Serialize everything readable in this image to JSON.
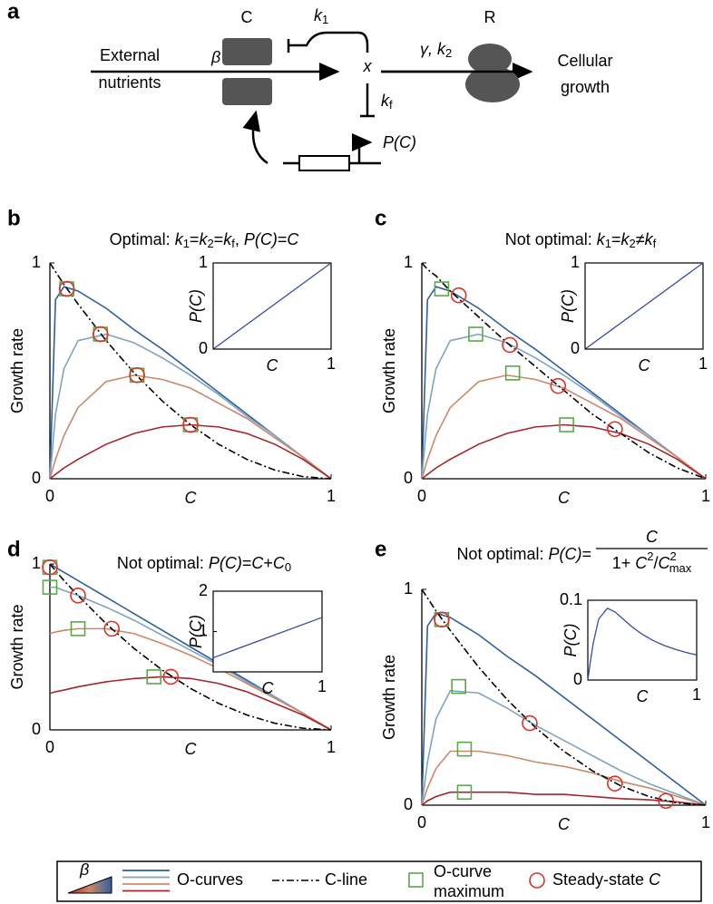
{
  "diagram": {
    "panel": "a",
    "channel_label": "C",
    "ribosome_label": "R",
    "input": [
      "External",
      "nutrients"
    ],
    "output": [
      "Cellular",
      "growth"
    ],
    "beta": "β",
    "intermediate": "x",
    "k1": [
      "k",
      "1"
    ],
    "kf": [
      "k",
      "f"
    ],
    "gamma_k2": [
      "γ, k",
      "2"
    ],
    "promoter": "P(C)"
  },
  "chart_data": [
    {
      "type": "line",
      "panel": "b",
      "title": [
        "Optimal: ",
        "k",
        "1",
        "=",
        "k",
        "2",
        "=",
        "k",
        "f",
        ", ",
        "P(C)",
        "=",
        "C"
      ],
      "xlabel": "C",
      "ylabel": "Growth rate",
      "xlim": [
        0,
        1
      ],
      "ylim": [
        0,
        1
      ],
      "xticks": [
        0,
        1
      ],
      "yticks": [
        0,
        1
      ],
      "x": [
        0,
        0.02,
        0.05,
        0.1,
        0.2,
        0.3,
        0.4,
        0.5,
        0.6,
        0.7,
        0.8,
        0.9,
        1
      ],
      "series": [
        {
          "color": "#2e5f9e",
          "values": [
            0,
            0.83,
            0.89,
            0.87,
            0.79,
            0.69,
            0.6,
            0.5,
            0.4,
            0.3,
            0.2,
            0.1,
            0
          ]
        },
        {
          "color": "#7fa3c0",
          "values": [
            0,
            0.3,
            0.51,
            0.64,
            0.67,
            0.63,
            0.56,
            0.48,
            0.39,
            0.29,
            0.2,
            0.1,
            0
          ]
        },
        {
          "color": "#c9896a",
          "values": [
            0,
            0.09,
            0.2,
            0.33,
            0.45,
            0.48,
            0.46,
            0.42,
            0.35,
            0.28,
            0.19,
            0.1,
            0
          ]
        },
        {
          "color": "#a3262a",
          "values": [
            0,
            0.02,
            0.05,
            0.09,
            0.16,
            0.21,
            0.24,
            0.25,
            0.24,
            0.21,
            0.16,
            0.09,
            0
          ]
        },
        {
          "color": "#000000",
          "dash": "dash-dot",
          "values": [
            1,
            0.96,
            0.9,
            0.81,
            0.64,
            0.49,
            0.36,
            0.25,
            0.16,
            0.09,
            0.04,
            0.01,
            0
          ]
        }
      ],
      "markers": [
        {
          "shape": "square",
          "color": "#5aa84a",
          "x": [
            0.06,
            0.18,
            0.31,
            0.5
          ],
          "y": [
            0.88,
            0.67,
            0.48,
            0.25
          ]
        },
        {
          "shape": "circle",
          "color": "#d9342b",
          "x": [
            0.06,
            0.18,
            0.31,
            0.5
          ],
          "y": [
            0.88,
            0.67,
            0.48,
            0.25
          ]
        }
      ],
      "inset": {
        "xlabel": "C",
        "ylabel": "P(C)",
        "xlim": [
          0,
          1
        ],
        "ylim": [
          0,
          1
        ],
        "xticks": [
          1
        ],
        "yticks": [
          0,
          1
        ],
        "x": [
          0,
          1
        ],
        "values": [
          0,
          1
        ],
        "color": "#3b4ba0"
      }
    },
    {
      "type": "line",
      "panel": "c",
      "title": [
        "Not optimal: ",
        "k",
        "1",
        "=",
        "k",
        "2",
        "≠",
        "k",
        "f"
      ],
      "xlabel": "C",
      "ylabel": "Growth rate",
      "xlim": [
        0,
        1
      ],
      "ylim": [
        0,
        1
      ],
      "xticks": [
        0,
        1
      ],
      "yticks": [
        0,
        1
      ],
      "x": [
        0,
        0.02,
        0.05,
        0.1,
        0.2,
        0.3,
        0.4,
        0.5,
        0.6,
        0.7,
        0.8,
        0.9,
        1
      ],
      "series": [
        {
          "color": "#2e5f9e",
          "values": [
            0,
            0.83,
            0.89,
            0.87,
            0.79,
            0.69,
            0.6,
            0.5,
            0.4,
            0.3,
            0.2,
            0.1,
            0
          ]
        },
        {
          "color": "#7fa3c0",
          "values": [
            0,
            0.3,
            0.51,
            0.64,
            0.67,
            0.63,
            0.56,
            0.48,
            0.39,
            0.29,
            0.2,
            0.1,
            0
          ]
        },
        {
          "color": "#c9896a",
          "values": [
            0,
            0.09,
            0.2,
            0.33,
            0.45,
            0.48,
            0.46,
            0.42,
            0.35,
            0.28,
            0.19,
            0.1,
            0
          ]
        },
        {
          "color": "#a3262a",
          "values": [
            0,
            0.02,
            0.05,
            0.09,
            0.16,
            0.21,
            0.24,
            0.25,
            0.24,
            0.21,
            0.16,
            0.09,
            0
          ]
        },
        {
          "color": "#000000",
          "dash": "dash-dot",
          "values": [
            1,
            0.97,
            0.94,
            0.87,
            0.75,
            0.63,
            0.52,
            0.41,
            0.3,
            0.21,
            0.12,
            0.05,
            0
          ]
        }
      ],
      "markers": [
        {
          "shape": "square",
          "color": "#5aa84a",
          "x": [
            0.07,
            0.19,
            0.32,
            0.51
          ],
          "y": [
            0.88,
            0.67,
            0.49,
            0.25
          ]
        },
        {
          "shape": "circle",
          "color": "#d9342b",
          "x": [
            0.13,
            0.31,
            0.48,
            0.68
          ],
          "y": [
            0.85,
            0.62,
            0.43,
            0.23
          ]
        }
      ],
      "inset": {
        "xlabel": "C",
        "ylabel": "P(C)",
        "xlim": [
          0,
          1
        ],
        "ylim": [
          0,
          1
        ],
        "xticks": [
          1
        ],
        "yticks": [
          0,
          1
        ],
        "x": [
          0,
          1
        ],
        "values": [
          0,
          1
        ],
        "color": "#3b4ba0"
      }
    },
    {
      "type": "line",
      "panel": "d",
      "title": [
        "Not optimal: ",
        "P(C)",
        "=",
        "C",
        "+",
        "C",
        "0"
      ],
      "xlabel": "C",
      "ylabel": "Growth rate",
      "xlim": [
        0,
        1
      ],
      "ylim": [
        0,
        1
      ],
      "xticks": [
        0,
        1
      ],
      "yticks": [
        0,
        1
      ],
      "x": [
        0,
        0.02,
        0.05,
        0.1,
        0.2,
        0.3,
        0.4,
        0.5,
        0.6,
        0.7,
        0.8,
        0.9,
        1
      ],
      "series": [
        {
          "color": "#2e5f9e",
          "values": [
            1,
            0.98,
            0.95,
            0.9,
            0.8,
            0.7,
            0.6,
            0.5,
            0.4,
            0.3,
            0.2,
            0.1,
            0
          ]
        },
        {
          "color": "#7fa3c0",
          "values": [
            0.86,
            0.86,
            0.84,
            0.81,
            0.74,
            0.66,
            0.57,
            0.48,
            0.39,
            0.29,
            0.2,
            0.1,
            0
          ]
        },
        {
          "color": "#c9896a",
          "values": [
            0.58,
            0.59,
            0.6,
            0.61,
            0.61,
            0.58,
            0.52,
            0.45,
            0.37,
            0.28,
            0.19,
            0.1,
            0
          ]
        },
        {
          "color": "#a3262a",
          "values": [
            0.22,
            0.23,
            0.24,
            0.26,
            0.29,
            0.31,
            0.32,
            0.31,
            0.28,
            0.23,
            0.16,
            0.09,
            0
          ]
        },
        {
          "color": "#000000",
          "dash": "dash-dot",
          "values": [
            1,
            0.96,
            0.9,
            0.81,
            0.64,
            0.49,
            0.36,
            0.25,
            0.16,
            0.09,
            0.04,
            0.01,
            0
          ]
        }
      ],
      "markers": [
        {
          "shape": "square",
          "color": "#5aa84a",
          "x": [
            0,
            0,
            0.1,
            0.37
          ],
          "y": [
            0.98,
            0.86,
            0.61,
            0.32
          ]
        },
        {
          "shape": "circle",
          "color": "#d9342b",
          "x": [
            0,
            0.1,
            0.22,
            0.43
          ],
          "y": [
            0.98,
            0.81,
            0.61,
            0.32
          ]
        }
      ],
      "inset": {
        "xlabel": "C",
        "ylabel": "P(C)",
        "xlim": [
          0,
          1
        ],
        "ylim": [
          0,
          2
        ],
        "xticks": [
          1
        ],
        "yticks": [
          1,
          2
        ],
        "x": [
          0,
          1
        ],
        "values": [
          0.35,
          1.35
        ],
        "color": "#3b4ba0"
      }
    },
    {
      "type": "line",
      "panel": "e",
      "title": [
        "Not optimal: ",
        "P(C)",
        "="
      ],
      "title_fraction": {
        "numerator": "C",
        "denominator": [
          "1+ ",
          "C",
          "2",
          "/",
          "C",
          "2",
          "max"
        ]
      },
      "xlabel": "C",
      "ylabel": "Growth rate",
      "xlim": [
        0,
        1
      ],
      "ylim": [
        0,
        1
      ],
      "xticks": [
        0,
        1
      ],
      "yticks": [
        0,
        1
      ],
      "x": [
        0,
        0.02,
        0.05,
        0.1,
        0.2,
        0.3,
        0.4,
        0.5,
        0.6,
        0.7,
        0.8,
        0.9,
        1
      ],
      "series": [
        {
          "color": "#2e5f9e",
          "values": [
            0,
            0.83,
            0.89,
            0.87,
            0.79,
            0.69,
            0.6,
            0.5,
            0.4,
            0.3,
            0.2,
            0.1,
            0
          ]
        },
        {
          "color": "#7fa3c0",
          "values": [
            0,
            0.2,
            0.4,
            0.53,
            0.52,
            0.45,
            0.37,
            0.3,
            0.23,
            0.16,
            0.1,
            0.05,
            0
          ]
        },
        {
          "color": "#c9896a",
          "values": [
            0,
            0.08,
            0.17,
            0.25,
            0.25,
            0.23,
            0.2,
            0.18,
            0.15,
            0.11,
            0.08,
            0.04,
            0
          ]
        },
        {
          "color": "#a3262a",
          "values": [
            0,
            0.02,
            0.04,
            0.06,
            0.06,
            0.06,
            0.05,
            0.05,
            0.04,
            0.03,
            0.025,
            0.015,
            0
          ]
        },
        {
          "color": "#000000",
          "dash": "dash-dot",
          "values": [
            1,
            0.96,
            0.9,
            0.81,
            0.64,
            0.49,
            0.36,
            0.25,
            0.16,
            0.09,
            0.04,
            0.01,
            0
          ]
        }
      ],
      "markers": [
        {
          "shape": "square",
          "color": "#5aa84a",
          "x": [
            0.07,
            0.13,
            0.15,
            0.15
          ],
          "y": [
            0.86,
            0.55,
            0.26,
            0.06
          ]
        },
        {
          "shape": "circle",
          "color": "#d9342b",
          "x": [
            0.07,
            0.38,
            0.68,
            0.86
          ],
          "y": [
            0.86,
            0.38,
            0.1,
            0.02
          ]
        }
      ],
      "inset": {
        "xlabel": "C",
        "ylabel": "P(C)",
        "xlim": [
          0,
          1
        ],
        "ylim": [
          0,
          0.1
        ],
        "xticks": [
          1
        ],
        "yticks": [
          0,
          0.1
        ],
        "x": [
          0,
          0.02,
          0.05,
          0.1,
          0.18,
          0.25,
          0.3,
          0.4,
          0.5,
          0.6,
          0.7,
          0.8,
          0.9,
          1
        ],
        "values": [
          0,
          0.0198,
          0.0464,
          0.0764,
          0.09,
          0.0853,
          0.0794,
          0.0673,
          0.0573,
          0.0495,
          0.0435,
          0.0386,
          0.0346,
          0.0314
        ],
        "color": "#3b4ba0"
      }
    }
  ],
  "legend": {
    "beta": "β",
    "colors": [
      "#2e5f9e",
      "#7fa3c0",
      "#c9896a",
      "#a3262a"
    ],
    "o_curves": "O-curves",
    "c_line": "C-line",
    "maximum": [
      "O-curve",
      "maximum"
    ],
    "steady_state": [
      "Steady-state ",
      "C"
    ]
  }
}
